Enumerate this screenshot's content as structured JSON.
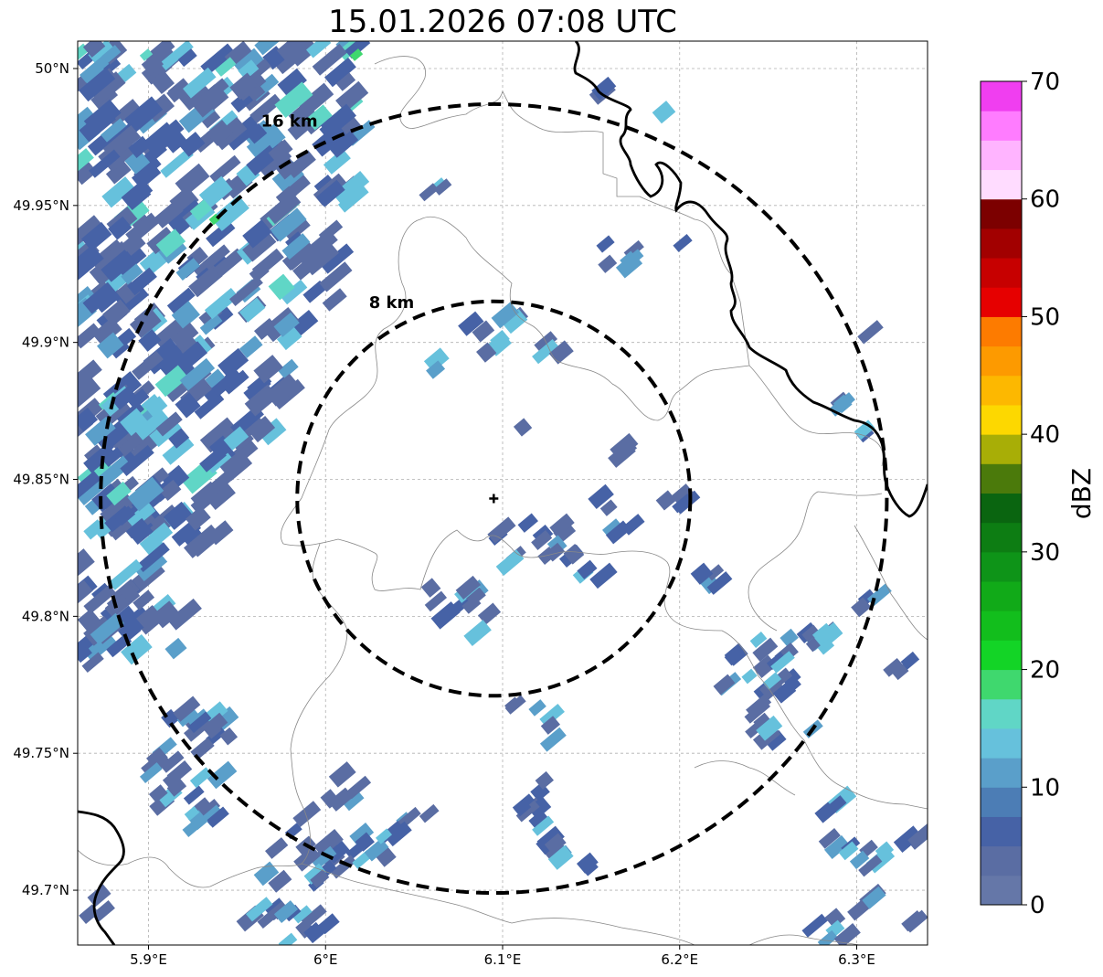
{
  "title": "15.01.2026 07:08 UTC",
  "map": {
    "lon_range": [
      5.86,
      6.34
    ],
    "lat_range": [
      49.68,
      50.01
    ],
    "lon_ticks": [
      {
        "value": 5.9,
        "label": "5.9°E"
      },
      {
        "value": 6.0,
        "label": "6°E"
      },
      {
        "value": 6.1,
        "label": "6.1°E"
      },
      {
        "value": 6.2,
        "label": "6.2°E"
      },
      {
        "value": 6.3,
        "label": "6.3°E"
      }
    ],
    "lat_ticks": [
      {
        "value": 50.0,
        "label": "50°N"
      },
      {
        "value": 49.95,
        "label": "49.95°N"
      },
      {
        "value": 49.9,
        "label": "49.9°N"
      },
      {
        "value": 49.85,
        "label": "49.85°N"
      },
      {
        "value": 49.8,
        "label": "49.8°N"
      },
      {
        "value": 49.75,
        "label": "49.75°N"
      },
      {
        "value": 49.7,
        "label": "49.7°N"
      }
    ],
    "center": {
      "lon": 6.095,
      "lat": 49.843
    },
    "rings": [
      {
        "label": "8 km",
        "radius_lat_deg": 0.072,
        "radius_lon_deg": 0.111
      },
      {
        "label": "16 km",
        "radius_lat_deg": 0.144,
        "radius_lon_deg": 0.222
      }
    ],
    "grid": true
  },
  "colorbar": {
    "label": "dBZ",
    "min": 0,
    "max": 70,
    "tick_labels": [
      "0",
      "10",
      "20",
      "30",
      "40",
      "50",
      "60",
      "70"
    ],
    "colors": [
      "#6577a8",
      "#5a6da3",
      "#4662a6",
      "#4c7db5",
      "#5a9fca",
      "#66c1dc",
      "#60d6c6",
      "#3fd86e",
      "#13d426",
      "#12be1c",
      "#11aa18",
      "#0e9418",
      "#0d7d13",
      "#0a6510",
      "#4b7a0b",
      "#a8ae06",
      "#fdd800",
      "#fdb800",
      "#fd9a00",
      "#fd7b00",
      "#e60000",
      "#c70000",
      "#a20000",
      "#7c0000",
      "#ffdcff",
      "#ffb4ff",
      "#ff7cff",
      "#f03ef0"
    ]
  },
  "echo_colors": {
    "low": "#5a6da3",
    "mid": "#4662a6",
    "light_blue": "#5a9fca",
    "cyan": "#66c1dc",
    "teal": "#60d6c6",
    "green": "#3fd86e"
  }
}
